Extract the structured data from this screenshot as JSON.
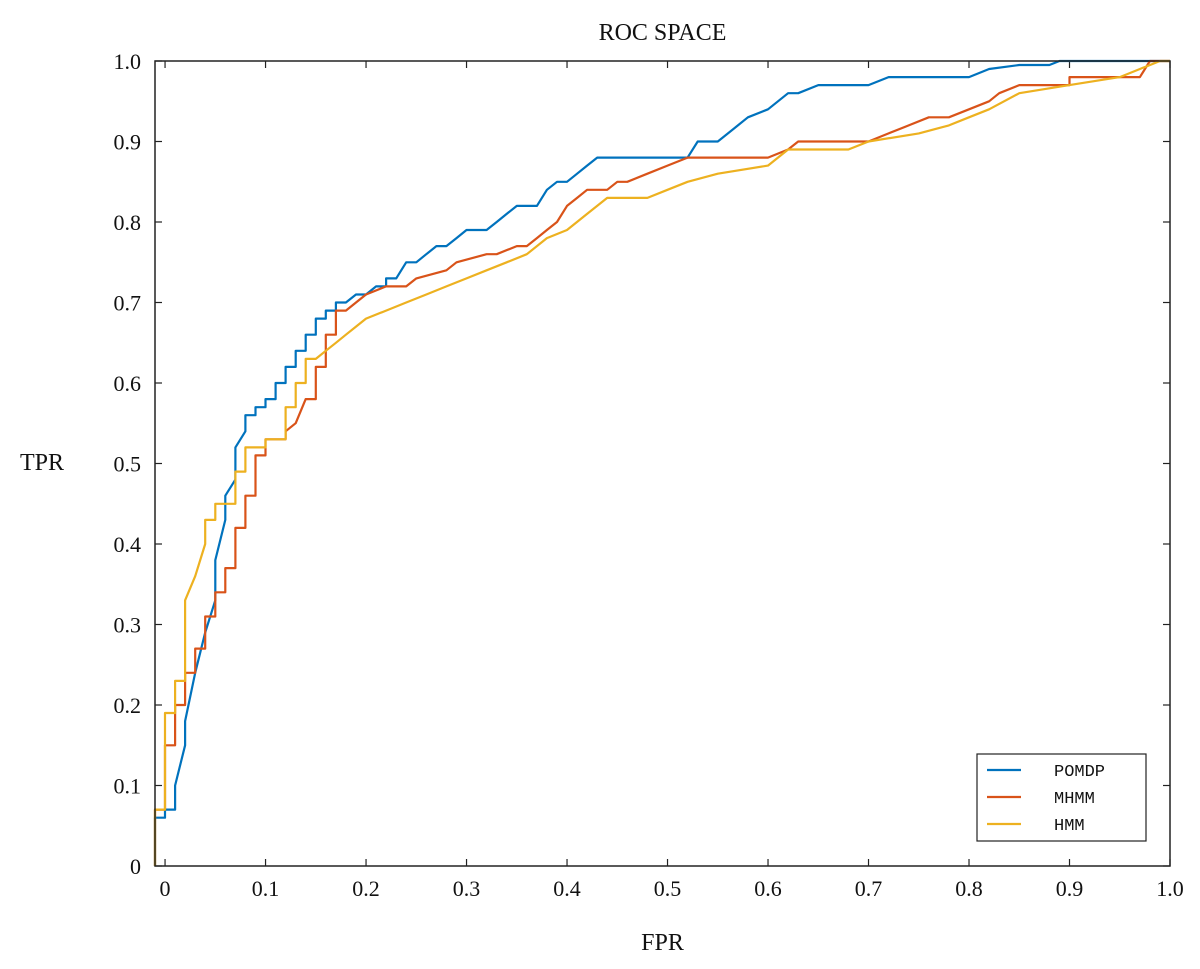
{
  "chart_data": {
    "type": "line",
    "title": "ROC SPACE",
    "xlabel": "FPR",
    "ylabel": "TPR",
    "xlim": [
      0,
      1
    ],
    "ylim": [
      0,
      1
    ],
    "grid": false,
    "legend_position": "bottom-right",
    "x_tick_labels": [
      "0",
      "0.1",
      "0.2",
      "0.3",
      "0.4",
      "0.5",
      "0.6",
      "0.7",
      "0.8",
      "0.9",
      "1.0"
    ],
    "x_ticks": [
      0,
      0.1,
      0.2,
      0.3,
      0.4,
      0.5,
      0.6,
      0.7,
      0.8,
      0.9,
      1.0
    ],
    "y_tick_labels": [
      "0",
      "0.1",
      "0.2",
      "0.3",
      "0.4",
      "0.5",
      "0.6",
      "0.7",
      "0.8",
      "0.9",
      "1.0"
    ],
    "y_ticks": [
      0,
      0.1,
      0.2,
      0.3,
      0.4,
      0.5,
      0.6,
      0.7,
      0.8,
      0.9,
      1.0
    ],
    "series": [
      {
        "name": "POMDP",
        "color": "#0072BD",
        "x": [
          -0.01,
          -0.01,
          0.0,
          0.0,
          0.01,
          0.01,
          0.02,
          0.02,
          0.03,
          0.04,
          0.05,
          0.05,
          0.06,
          0.06,
          0.07,
          0.07,
          0.08,
          0.08,
          0.09,
          0.09,
          0.1,
          0.1,
          0.11,
          0.11,
          0.12,
          0.12,
          0.13,
          0.13,
          0.14,
          0.14,
          0.15,
          0.15,
          0.16,
          0.16,
          0.17,
          0.17,
          0.18,
          0.19,
          0.2,
          0.21,
          0.22,
          0.22,
          0.23,
          0.24,
          0.25,
          0.26,
          0.27,
          0.28,
          0.29,
          0.3,
          0.31,
          0.32,
          0.33,
          0.34,
          0.35,
          0.36,
          0.37,
          0.38,
          0.39,
          0.4,
          0.41,
          0.42,
          0.43,
          0.44,
          0.45,
          0.5,
          0.52,
          0.53,
          0.55,
          0.57,
          0.58,
          0.6,
          0.62,
          0.63,
          0.65,
          0.7,
          0.72,
          0.75,
          0.8,
          0.82,
          0.85,
          0.88,
          0.89,
          0.9,
          1.0
        ],
        "y": [
          0.0,
          0.06,
          0.06,
          0.07,
          0.07,
          0.1,
          0.15,
          0.18,
          0.24,
          0.29,
          0.33,
          0.38,
          0.43,
          0.46,
          0.48,
          0.52,
          0.54,
          0.56,
          0.56,
          0.57,
          0.57,
          0.58,
          0.58,
          0.6,
          0.6,
          0.62,
          0.62,
          0.64,
          0.64,
          0.66,
          0.66,
          0.68,
          0.68,
          0.69,
          0.69,
          0.7,
          0.7,
          0.71,
          0.71,
          0.72,
          0.72,
          0.73,
          0.73,
          0.75,
          0.75,
          0.76,
          0.77,
          0.77,
          0.78,
          0.79,
          0.79,
          0.79,
          0.8,
          0.81,
          0.82,
          0.82,
          0.82,
          0.84,
          0.85,
          0.85,
          0.86,
          0.87,
          0.88,
          0.88,
          0.88,
          0.88,
          0.88,
          0.9,
          0.9,
          0.92,
          0.93,
          0.94,
          0.96,
          0.96,
          0.97,
          0.97,
          0.98,
          0.98,
          0.98,
          0.99,
          0.995,
          0.995,
          1.0,
          1.0,
          1.0
        ]
      },
      {
        "name": "MHMM",
        "color": "#D95319",
        "x": [
          -0.01,
          -0.01,
          0.0,
          0.0,
          0.01,
          0.01,
          0.02,
          0.02,
          0.03,
          0.03,
          0.04,
          0.04,
          0.05,
          0.05,
          0.06,
          0.06,
          0.07,
          0.07,
          0.08,
          0.08,
          0.09,
          0.09,
          0.1,
          0.1,
          0.12,
          0.12,
          0.13,
          0.14,
          0.15,
          0.15,
          0.16,
          0.16,
          0.17,
          0.17,
          0.18,
          0.19,
          0.2,
          0.22,
          0.24,
          0.25,
          0.28,
          0.29,
          0.32,
          0.33,
          0.35,
          0.36,
          0.37,
          0.38,
          0.39,
          0.4,
          0.41,
          0.42,
          0.44,
          0.45,
          0.46,
          0.48,
          0.5,
          0.52,
          0.6,
          0.62,
          0.63,
          0.7,
          0.72,
          0.74,
          0.76,
          0.78,
          0.8,
          0.82,
          0.83,
          0.85,
          0.9,
          0.9,
          0.91,
          0.92,
          0.97,
          0.98,
          1.0
        ],
        "y": [
          0.0,
          0.07,
          0.07,
          0.15,
          0.15,
          0.2,
          0.2,
          0.24,
          0.24,
          0.27,
          0.27,
          0.31,
          0.31,
          0.34,
          0.34,
          0.37,
          0.37,
          0.42,
          0.42,
          0.46,
          0.46,
          0.51,
          0.51,
          0.53,
          0.53,
          0.54,
          0.55,
          0.58,
          0.58,
          0.62,
          0.62,
          0.66,
          0.66,
          0.69,
          0.69,
          0.7,
          0.71,
          0.72,
          0.72,
          0.73,
          0.74,
          0.75,
          0.76,
          0.76,
          0.77,
          0.77,
          0.78,
          0.79,
          0.8,
          0.82,
          0.83,
          0.84,
          0.84,
          0.85,
          0.85,
          0.86,
          0.87,
          0.88,
          0.88,
          0.89,
          0.9,
          0.9,
          0.91,
          0.92,
          0.93,
          0.93,
          0.94,
          0.95,
          0.96,
          0.97,
          0.97,
          0.98,
          0.98,
          0.98,
          0.98,
          1.0,
          1.0
        ]
      },
      {
        "name": "HMM",
        "color": "#EDB120",
        "x": [
          -0.01,
          -0.01,
          0.0,
          0.0,
          0.01,
          0.01,
          0.02,
          0.02,
          0.03,
          0.04,
          0.04,
          0.05,
          0.05,
          0.07,
          0.07,
          0.08,
          0.08,
          0.1,
          0.1,
          0.12,
          0.12,
          0.13,
          0.13,
          0.14,
          0.14,
          0.15,
          0.16,
          0.17,
          0.18,
          0.19,
          0.2,
          0.22,
          0.24,
          0.26,
          0.28,
          0.3,
          0.32,
          0.34,
          0.36,
          0.38,
          0.4,
          0.42,
          0.44,
          0.48,
          0.5,
          0.52,
          0.55,
          0.6,
          0.62,
          0.65,
          0.68,
          0.7,
          0.75,
          0.78,
          0.8,
          0.82,
          0.85,
          0.9,
          0.95,
          0.97,
          0.99,
          1.0
        ],
        "y": [
          0.0,
          0.07,
          0.07,
          0.19,
          0.19,
          0.23,
          0.23,
          0.33,
          0.36,
          0.4,
          0.43,
          0.43,
          0.45,
          0.45,
          0.49,
          0.49,
          0.52,
          0.52,
          0.53,
          0.53,
          0.57,
          0.57,
          0.6,
          0.6,
          0.63,
          0.63,
          0.64,
          0.65,
          0.66,
          0.67,
          0.68,
          0.69,
          0.7,
          0.71,
          0.72,
          0.73,
          0.74,
          0.75,
          0.76,
          0.78,
          0.79,
          0.81,
          0.83,
          0.83,
          0.84,
          0.85,
          0.86,
          0.87,
          0.89,
          0.89,
          0.89,
          0.9,
          0.91,
          0.92,
          0.93,
          0.94,
          0.96,
          0.97,
          0.98,
          0.99,
          1.0,
          1.0
        ]
      }
    ]
  }
}
